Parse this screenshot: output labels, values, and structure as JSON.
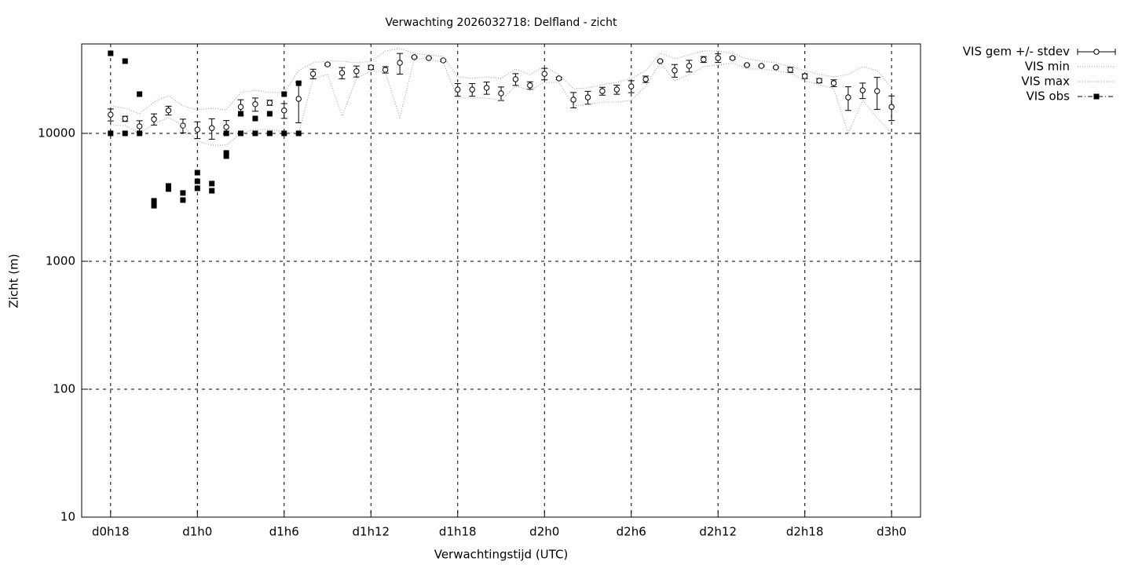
{
  "chart_data": {
    "type": "errorbar",
    "title": "Verwachting 2026032718: Delfland - zicht",
    "x_label": "Verwachtingstijd (UTC)",
    "y_label": "Zicht (m)",
    "log_y": true,
    "grid": true,
    "legend": "outside-top-right",
    "xlim": [
      16,
      74
    ],
    "ylim": [
      10,
      50000
    ],
    "xticks": [
      {
        "value": 18,
        "label": "d0h18"
      },
      {
        "value": 24,
        "label": "d1h0"
      },
      {
        "value": 30,
        "label": "d1h6"
      },
      {
        "value": 36,
        "label": "d1h12"
      },
      {
        "value": 42,
        "label": "d1h18"
      },
      {
        "value": 48,
        "label": "d2h0"
      },
      {
        "value": 54,
        "label": "d2h6"
      },
      {
        "value": 60,
        "label": "d2h12"
      },
      {
        "value": 66,
        "label": "d2h18"
      },
      {
        "value": 72,
        "label": "d3h0"
      }
    ],
    "yticks": [
      10,
      100,
      1000,
      10000
    ],
    "x": [
      18,
      19,
      20,
      21,
      22,
      23,
      24,
      25,
      26,
      27,
      28,
      29,
      30,
      31,
      32,
      33,
      34,
      35,
      36,
      37,
      38,
      39,
      40,
      41,
      42,
      43,
      44,
      45,
      46,
      47,
      48,
      49,
      50,
      51,
      52,
      53,
      54,
      55,
      56,
      57,
      58,
      59,
      60,
      61,
      62,
      63,
      64,
      65,
      66,
      67,
      68,
      69,
      70,
      71,
      72
    ],
    "series": [
      {
        "name": "VIS gem +/- stdev",
        "style": "errorbar",
        "color": "#000000",
        "values": [
          14000,
          13000,
          11350,
          12900,
          15100,
          11500,
          10700,
          11000,
          11200,
          16100,
          16900,
          17350,
          15100,
          18600,
          29200,
          34600,
          29700,
          30600,
          32800,
          31400,
          35600,
          39400,
          38800,
          37200,
          22000,
          22000,
          22700,
          20540,
          26500,
          23700,
          29200,
          26900,
          18350,
          19100,
          21400,
          22000,
          23300,
          26500,
          36700,
          31000,
          33700,
          37800,
          38800,
          38800,
          34200,
          33700,
          32800,
          31400,
          28000,
          25800,
          24700,
          19100,
          21700,
          21400,
          16100
        ],
        "errors": [
          1500,
          600,
          1200,
          1300,
          1200,
          1400,
          1600,
          2000,
          1400,
          2200,
          2000,
          800,
          2000,
          6500,
          2500,
          600,
          3000,
          3000,
          1200,
          1800,
          6500,
          400,
          400,
          600,
          2500,
          2500,
          2500,
          2500,
          2800,
          1600,
          3000,
          600,
          2500,
          2200,
          1500,
          1800,
          2500,
          1500,
          500,
          3500,
          3500,
          2000,
          3000,
          800,
          400,
          400,
          400,
          1500,
          1200,
          1000,
          1500,
          4000,
          3000,
          6000,
          3500
        ]
      },
      {
        "name": "VIS min",
        "style": "dotted",
        "color": "#999999",
        "values": [
          11520,
          11520,
          10000,
          11850,
          13270,
          11520,
          8684,
          8090,
          8090,
          10000,
          10730,
          10730,
          10290,
          10000,
          26880,
          28850,
          13650,
          26880,
          30930,
          30070,
          13270,
          38350,
          38350,
          35650,
          18890,
          18890,
          18890,
          18100,
          23350,
          21740,
          25040,
          25040,
          16400,
          16860,
          17590,
          17590,
          18100,
          23350,
          35650,
          25760,
          28850,
          33250,
          34210,
          35650,
          31850,
          31850,
          30930,
          29600,
          25760,
          24030,
          22380,
          10000,
          18100,
          13270,
          10000
        ]
      },
      {
        "name": "VIS max",
        "style": "dotted",
        "color": "#999999",
        "values": [
          16400,
          15710,
          14230,
          17590,
          19780,
          16400,
          15270,
          15710,
          15270,
          20860,
          21740,
          20860,
          20860,
          30930,
          35650,
          36690,
          36690,
          35650,
          36690,
          44040,
          45990,
          42270,
          41090,
          39930,
          27670,
          26880,
          27670,
          26880,
          31850,
          28850,
          33250,
          28850,
          22370,
          22690,
          24020,
          25050,
          26880,
          30930,
          42270,
          38260,
          41090,
          44040,
          44040,
          42270,
          38260,
          36690,
          35650,
          33250,
          30930,
          28850,
          27670,
          28850,
          33250,
          30930,
          22690
        ]
      },
      {
        "name": "VIS obs",
        "style": "points",
        "color": "#000000",
        "x": [
          18,
          18,
          19,
          19,
          20,
          20,
          21,
          21,
          22,
          22,
          23,
          23,
          24,
          24,
          24,
          25,
          25,
          26,
          26,
          26,
          27,
          27,
          28,
          28,
          29,
          29,
          30,
          30,
          31,
          31
        ],
        "values": [
          42240,
          10000,
          36690,
          10000,
          20260,
          10000,
          2970,
          2720,
          3880,
          3670,
          3420,
          3010,
          4930,
          4220,
          3720,
          4050,
          3560,
          7030,
          6640,
          10000,
          14230,
          10000,
          13070,
          10000,
          14230,
          10000,
          20260,
          10000,
          24650,
          10000
        ]
      }
    ]
  }
}
